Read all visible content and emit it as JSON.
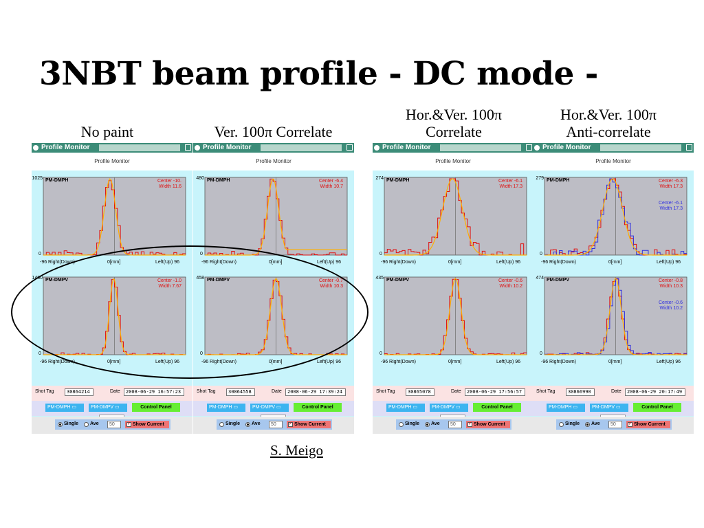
{
  "slide": {
    "title": "3NBT beam profile  - DC mode -",
    "author": "S. Meigo"
  },
  "captions": [
    {
      "text": "No paint"
    },
    {
      "text": "Ver. 100π Correlate"
    },
    {
      "text": "Hor.&Ver. 100π\nCorrelate"
    },
    {
      "text": "Hor.&Ver. 100π\nAnti-correlate"
    }
  ],
  "colors": {
    "titlebar": "#3c8c78",
    "plot_bg": "#bdbdc5",
    "hist_red": "#e01010",
    "fit_orange": "#ffb000",
    "hist_blue": "#3030e0",
    "panel_cyan": "#c8f4fb"
  },
  "common": {
    "window_title": "Profile Monitor",
    "subheader": "Profile Monitor",
    "x_left": "-96 Right(Down)",
    "x_mid": "0[mm]",
    "x_right": "Left(Up) 96",
    "y_zero": "0",
    "shot_tag_label": "Shot Tag",
    "date_label": "Date",
    "combo_h": "PM-DMPH",
    "combo_v": "PM-DMPV",
    "control_panel": "Control Panel",
    "single": "Single",
    "ave": "Ave",
    "ave_count": "50",
    "show_current": "Show Current",
    "icons": [
      "window-icon",
      "maximize-icon",
      "combo-arrow-icon",
      "checkbox-check-icon"
    ]
  },
  "windows": [
    {
      "shot_tag": "30864214",
      "date": "2008-06-29 16:57:23",
      "mode": "single",
      "h": {
        "name": "PM-DMPH",
        "ymax": "1025",
        "center": "Center  -10.",
        "width": "Width   11.6",
        "center2": "",
        "width2": "",
        "blue": false,
        "fit": "main",
        "dist": {
          "mu": -6,
          "sigma": 8,
          "noise": 0.04
        }
      },
      "v": {
        "name": "PM-DMPV",
        "ymax": "1480",
        "center": "Center  -1.0",
        "width": "Width   7.67",
        "center2": "",
        "width2": "",
        "blue": false,
        "fit": "main",
        "dist": {
          "mu": -1,
          "sigma": 6,
          "noise": 0.02
        }
      }
    },
    {
      "shot_tag": "30864558",
      "date": "2008-06-29 17:39:24",
      "mode": "ave",
      "h": {
        "name": "PM-DMPH",
        "ymax": "480",
        "center": "Center  -6.4",
        "width": "Width   10.7",
        "center2": "",
        "width2": "",
        "blue": false,
        "fit": "flat",
        "dist": {
          "mu": -4,
          "sigma": 8,
          "noise": 0.03
        }
      },
      "v": {
        "name": "PM-DMPV",
        "ymax": "458",
        "center": "Center  -0.7",
        "width": "Width   10.3",
        "center2": "",
        "width2": "",
        "blue": false,
        "fit": "main",
        "dist": {
          "mu": 0,
          "sigma": 8,
          "noise": 0.02
        }
      }
    },
    {
      "shot_tag": "30865078",
      "date": "2008-06-29 17:56:57",
      "mode": "ave",
      "h": {
        "name": "PM-DMPH",
        "ymax": "274",
        "center": "Center  -6.1",
        "width": "Width   17.3",
        "center2": "",
        "width2": "",
        "blue": false,
        "fit": "main",
        "dist": {
          "mu": -4,
          "sigma": 14,
          "noise": 0.08
        }
      },
      "v": {
        "name": "PM-DMPV",
        "ymax": "435",
        "center": "Center  -0.6",
        "width": "Width   10.2",
        "center2": "",
        "width2": "",
        "blue": false,
        "fit": "main",
        "dist": {
          "mu": 0,
          "sigma": 8,
          "noise": 0.02
        }
      }
    },
    {
      "shot_tag": "30866990",
      "date": "2008-06-29 20:17:49",
      "mode": "ave",
      "h": {
        "name": "PM-DMPH",
        "ymax": "279",
        "center": "Center  -6.3",
        "width": "Width   17.3",
        "center2": "Center  -6.1",
        "width2": "Width   17.3",
        "blue": true,
        "fit": "main",
        "dist": {
          "mu": -4,
          "sigma": 14,
          "noise": 0.08
        }
      },
      "v": {
        "name": "PM-DMPV",
        "ymax": "474",
        "center": "Center  -0.8",
        "width": "Width   10.3",
        "center2": "Center  -0.6",
        "width2": "Width   10.2",
        "blue": true,
        "fit": "main",
        "dist": {
          "mu": 0,
          "sigma": 8,
          "noise": 0.02
        }
      }
    }
  ]
}
